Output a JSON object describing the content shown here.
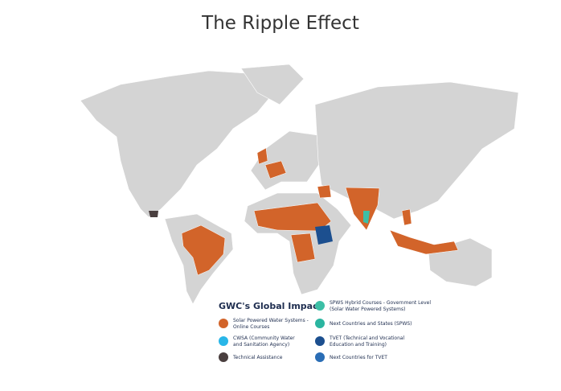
{
  "title": "The Ripple Effect",
  "legend": {
    "title": "GWC's Global Impact",
    "items": [
      {
        "lines": [
          "Solar Powered Water Systems -",
          "Online Courses"
        ],
        "color": "#d2642a"
      },
      {
        "lines": [
          "CWSA (Community Water",
          "and Sanitation Agency)"
        ],
        "color": "#29b6e8"
      },
      {
        "lines": [
          "Technical Assistance"
        ],
        "color": "#4a3f3f"
      },
      {
        "lines": [
          "SPWS Hybrid Courses - Government Level",
          "(Solar Water Powered Systems)"
        ],
        "color": "#3cbfa6"
      },
      {
        "lines": [
          "Next Countries and States (SPWS)"
        ],
        "color": "#2bb5a0"
      },
      {
        "lines": [
          "TVET (Technical and Vocational",
          "Education and Training)"
        ],
        "color": "#1c4f8f"
      },
      {
        "lines": [
          "Next Countries for TVET"
        ],
        "color": "#2a6db5"
      }
    ]
  }
}
